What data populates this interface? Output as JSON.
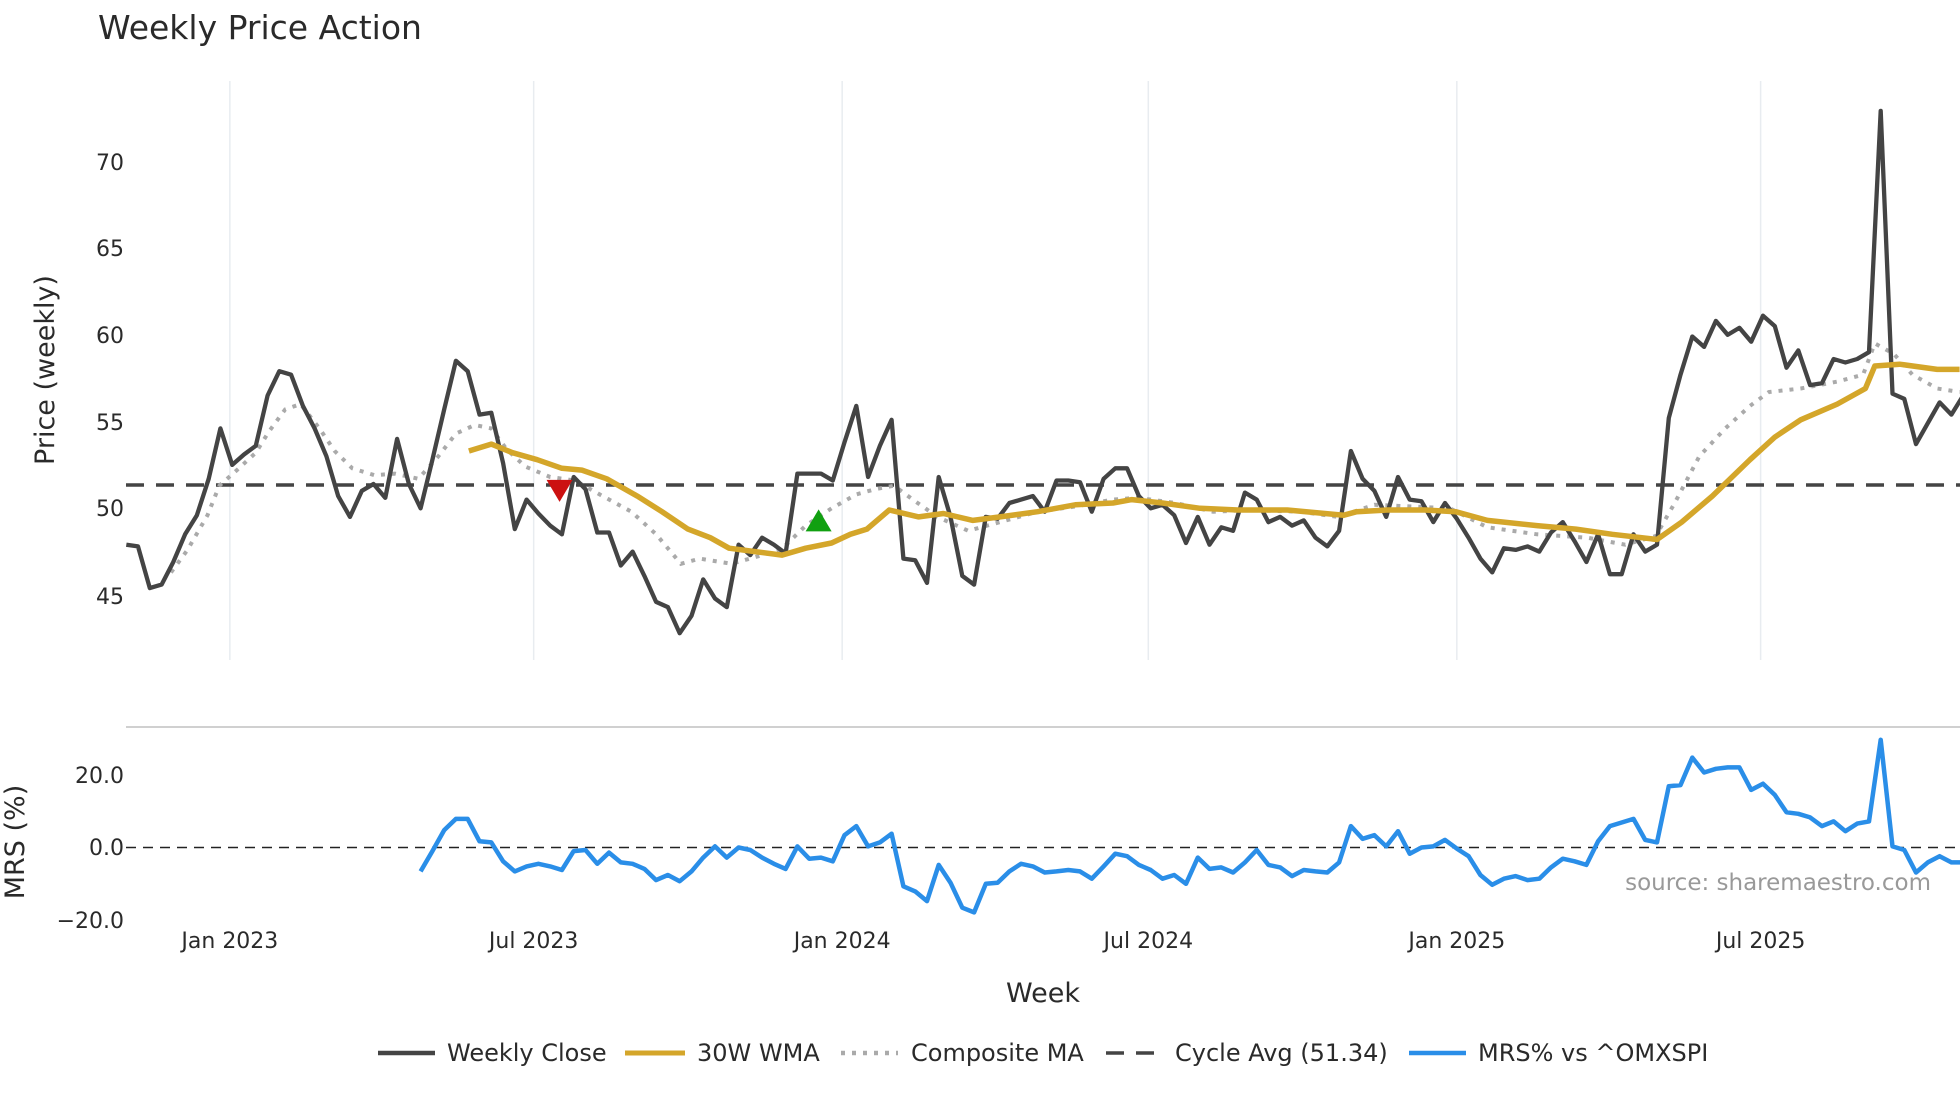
{
  "chart_data": {
    "type": "line",
    "title": "Weekly Price Action",
    "xlabel": "Week",
    "x_unit": "week index (weekly bars)",
    "x_ticks": [
      {
        "label": "Jan 2023",
        "week": 8.8
      },
      {
        "label": "Jul 2023",
        "week": 34.6
      },
      {
        "label": "Jan 2024",
        "week": 60.8
      },
      {
        "label": "Jul 2024",
        "week": 86.8
      },
      {
        "label": "Jan 2025",
        "week": 113.0
      },
      {
        "label": "Jul 2025",
        "week": 138.8
      }
    ],
    "price_panel": {
      "ylabel": "Price (weekly)",
      "ylim": [
        41.5,
        74.5
      ],
      "y_ticks": [
        "45",
        "50",
        "55",
        "60",
        "65",
        "70"
      ],
      "grid": "vertical",
      "series": {
        "weekly_close": {
          "name": "Weekly Close",
          "color": "#444444",
          "start_week": 0,
          "values": [
            47.9,
            47.8,
            45.4,
            45.6,
            46.9,
            48.5,
            49.6,
            51.7,
            54.6,
            52.5,
            53.1,
            53.6,
            56.5,
            57.9,
            57.7,
            55.9,
            54.6,
            53.0,
            50.7,
            49.5,
            51.0,
            51.4,
            50.6,
            54.0,
            51.4,
            50.0,
            52.8,
            55.7,
            58.5,
            57.9,
            55.4,
            55.5,
            52.6,
            48.8,
            50.5,
            49.7,
            49.0,
            48.5,
            51.8,
            51.1,
            48.6,
            48.6,
            46.7,
            47.5,
            46.1,
            44.6,
            44.3,
            42.8,
            43.8,
            45.9,
            44.8,
            44.3,
            47.9,
            47.3,
            48.3,
            47.9,
            47.4,
            52.0,
            52.0,
            52.0,
            51.6,
            53.8,
            55.9,
            51.8,
            53.6,
            55.1,
            47.1,
            47.0,
            45.7,
            51.8,
            49.5,
            46.1,
            45.6,
            49.5,
            49.4,
            50.3,
            50.5,
            50.7,
            49.8,
            51.6,
            51.6,
            51.5,
            49.8,
            51.7,
            52.3,
            52.3,
            50.7,
            50.0,
            50.2,
            49.6,
            48.0,
            49.5,
            47.9,
            48.9,
            48.7,
            50.9,
            50.5,
            49.2,
            49.5,
            49.0,
            49.3,
            48.3,
            47.8,
            48.7,
            53.3,
            51.7,
            51.0,
            49.5,
            51.8,
            50.5,
            50.4,
            49.2,
            50.3,
            49.4,
            48.3,
            47.1,
            46.3,
            47.7,
            47.6,
            47.8,
            47.5,
            48.6,
            49.2,
            48.1,
            46.9,
            48.5,
            46.2,
            46.2,
            48.5,
            47.5,
            47.9,
            55.2,
            57.7,
            59.9,
            59.3,
            60.8,
            60.0,
            60.4,
            59.6,
            61.1,
            60.5,
            58.1,
            59.1,
            57.1,
            57.2,
            58.6,
            58.4,
            58.6,
            59.0,
            72.9,
            56.6,
            56.3,
            53.7,
            54.9,
            56.1,
            55.4,
            56.5
          ]
        },
        "wma_30w": {
          "name": "30W WMA",
          "color": "#d4a62a",
          "points": [
            [
              29.1,
              53.3
            ],
            [
              31,
              53.7
            ],
            [
              32.8,
              53.2
            ],
            [
              34.9,
              52.8
            ],
            [
              37,
              52.3
            ],
            [
              38.7,
              52.2
            ],
            [
              40.8,
              51.7
            ],
            [
              43.4,
              50.7
            ],
            [
              45.5,
              49.8
            ],
            [
              47.7,
              48.8
            ],
            [
              49.6,
              48.3
            ],
            [
              51.2,
              47.7
            ],
            [
              53.4,
              47.5
            ],
            [
              55.7,
              47.3
            ],
            [
              57.7,
              47.7
            ],
            [
              59.9,
              48.0
            ],
            [
              61.5,
              48.5
            ],
            [
              62.9,
              48.8
            ],
            [
              64.8,
              49.9
            ],
            [
              67.3,
              49.5
            ],
            [
              69.4,
              49.7
            ],
            [
              71.9,
              49.3
            ],
            [
              74.2,
              49.5
            ],
            [
              77.4,
              49.8
            ],
            [
              80.6,
              50.2
            ],
            [
              83.8,
              50.3
            ],
            [
              85.4,
              50.5
            ],
            [
              88,
              50.3
            ],
            [
              91.2,
              50.0
            ],
            [
              94.4,
              49.9
            ],
            [
              98.6,
              49.9
            ],
            [
              103.4,
              49.6
            ],
            [
              104.5,
              49.8
            ],
            [
              107.1,
              49.9
            ],
            [
              110.3,
              49.9
            ],
            [
              112.9,
              49.8
            ],
            [
              115.6,
              49.3
            ],
            [
              119.8,
              49.0
            ],
            [
              123.1,
              48.8
            ],
            [
              126.2,
              48.5
            ],
            [
              130,
              48.2
            ],
            [
              132.1,
              49.2
            ],
            [
              134.7,
              50.7
            ],
            [
              137.9,
              52.8
            ],
            [
              140,
              54.1
            ],
            [
              142.2,
              55.1
            ],
            [
              145.3,
              56.0
            ],
            [
              147.7,
              56.9
            ],
            [
              148.5,
              58.2
            ],
            [
              150.6,
              58.3
            ],
            [
              153.8,
              58.0
            ],
            [
              155.7,
              58.0
            ]
          ]
        },
        "composite_ma": {
          "name": "Composite MA",
          "color": "#aaaaaa",
          "points": [
            [
              3.8,
              46.3
            ],
            [
              5.2,
              47.6
            ],
            [
              6.9,
              49.6
            ],
            [
              7.9,
              51.3
            ],
            [
              9.4,
              52.2
            ],
            [
              11,
              53.2
            ],
            [
              12.1,
              54.4
            ],
            [
              13.5,
              55.7
            ],
            [
              14.8,
              56.0
            ],
            [
              16.4,
              54.6
            ],
            [
              17.7,
              53.3
            ],
            [
              19.2,
              52.3
            ],
            [
              21.1,
              51.9
            ],
            [
              22.8,
              52.0
            ],
            [
              24.8,
              51.7
            ],
            [
              26.4,
              52.9
            ],
            [
              28,
              54.3
            ],
            [
              29.6,
              54.8
            ],
            [
              31,
              54.6
            ],
            [
              32.3,
              53.4
            ],
            [
              33.9,
              52.4
            ],
            [
              36,
              51.8
            ],
            [
              38.1,
              51.6
            ],
            [
              40.2,
              50.8
            ],
            [
              42.9,
              49.8
            ],
            [
              45,
              48.5
            ],
            [
              47.1,
              46.8
            ],
            [
              48.7,
              47.1
            ],
            [
              51.4,
              46.8
            ],
            [
              53.5,
              47.2
            ],
            [
              55.6,
              47.6
            ],
            [
              57.7,
              49.0
            ],
            [
              59.9,
              50.0
            ],
            [
              62,
              50.8
            ],
            [
              63.6,
              51.1
            ],
            [
              65.2,
              51.3
            ],
            [
              66.8,
              50.5
            ],
            [
              68.9,
              49.5
            ],
            [
              71.5,
              48.7
            ],
            [
              74.2,
              49.2
            ],
            [
              77.4,
              49.8
            ],
            [
              80.6,
              50.1
            ],
            [
              83.8,
              50.5
            ],
            [
              85.9,
              50.6
            ],
            [
              89.1,
              50.3
            ],
            [
              92.3,
              49.8
            ],
            [
              95.4,
              49.9
            ],
            [
              99.7,
              49.8
            ],
            [
              102.9,
              49.5
            ],
            [
              106,
              50.2
            ],
            [
              109.2,
              50.1
            ],
            [
              112.4,
              50.0
            ],
            [
              115.6,
              48.9
            ],
            [
              119.8,
              48.5
            ],
            [
              124.1,
              48.3
            ],
            [
              127.3,
              47.9
            ],
            [
              129.9,
              48.4
            ],
            [
              131.5,
              50.3
            ],
            [
              133.6,
              53.0
            ],
            [
              135.8,
              54.6
            ],
            [
              137.9,
              55.9
            ],
            [
              139.5,
              56.7
            ],
            [
              142.2,
              56.9
            ],
            [
              145.3,
              57.3
            ],
            [
              147.5,
              57.7
            ],
            [
              148.5,
              59.5
            ],
            [
              150.1,
              58.9
            ],
            [
              151.7,
              57.7
            ],
            [
              153.8,
              56.9
            ],
            [
              155.7,
              56.7
            ]
          ]
        },
        "cycle_avg": {
          "name": "Cycle Avg (51.34)",
          "value": 51.34,
          "color": "#444444"
        }
      },
      "signals": [
        {
          "type": "sell",
          "week": 36.8,
          "value": 51.0,
          "color": "#cc1111"
        },
        {
          "type": "buy",
          "week": 58.8,
          "value": 49.3,
          "color": "#11a011"
        }
      ]
    },
    "mrs_panel": {
      "ylabel": "MRS (%)",
      "ylim": [
        -22,
        33
      ],
      "y_ticks": [
        "20.0",
        "0.0",
        "−20.0"
      ],
      "zero_line": 0,
      "series": {
        "mrs": {
          "name": "MRS% vs ^OMXSPI",
          "color": "#2a8ee8",
          "start_week": 25,
          "values": [
            -6.6,
            -1,
            4.8,
            7.9,
            7.9,
            1.7,
            1.4,
            -3.8,
            -6.6,
            -5.2,
            -4.5,
            -5.2,
            -6.2,
            -1,
            -0.7,
            -4.5,
            -1.4,
            -4.1,
            -4.5,
            -5.9,
            -9,
            -7.6,
            -9.3,
            -6.6,
            -2.8,
            0.3,
            -2.8,
            0,
            -0.7,
            -2.8,
            -4.5,
            -5.9,
            0.3,
            -3.1,
            -2.8,
            -3.8,
            3.4,
            5.9,
            0.3,
            1.4,
            3.8,
            -10.7,
            -12.1,
            -14.8,
            -4.8,
            -9.7,
            -16.6,
            -17.9,
            -10,
            -9.7,
            -6.6,
            -4.5,
            -5.2,
            -6.9,
            -6.6,
            -6.2,
            -6.6,
            -8.6,
            -5.2,
            -1.7,
            -2.4,
            -4.8,
            -6.2,
            -8.6,
            -7.6,
            -10,
            -2.8,
            -5.9,
            -5.5,
            -6.9,
            -4.1,
            -0.7,
            -4.8,
            -5.5,
            -7.9,
            -6.2,
            -6.6,
            -6.9,
            -4.1,
            5.9,
            2.4,
            3.4,
            0.3,
            4.5,
            -1.7,
            0,
            0.3,
            2.1,
            -0.3,
            -2.4,
            -7.6,
            -10.3,
            -8.6,
            -7.9,
            -9,
            -8.6,
            -5.5,
            -3.1,
            -3.8,
            -4.8,
            1.7,
            5.9,
            6.9,
            7.9,
            2.1,
            1.4,
            16.9,
            17.2,
            24.8,
            20.7,
            21.7,
            22.1,
            22.1,
            15.9,
            17.6,
            14.5,
            9.7,
            9.3,
            8.3,
            5.9,
            7.2,
            4.5,
            6.6,
            7.2,
            29.7,
            0.3,
            -0.7,
            -6.9,
            -4.1,
            -2.4,
            -4.1,
            -4.1
          ]
        }
      }
    },
    "legend": {
      "placement": "bottom-center",
      "items": [
        "Weekly Close",
        "30W WMA",
        "Composite MA",
        "Cycle Avg (51.34)",
        "MRS% vs ^OMXSPI"
      ]
    },
    "annotation": "source: sharemaestro.com"
  }
}
